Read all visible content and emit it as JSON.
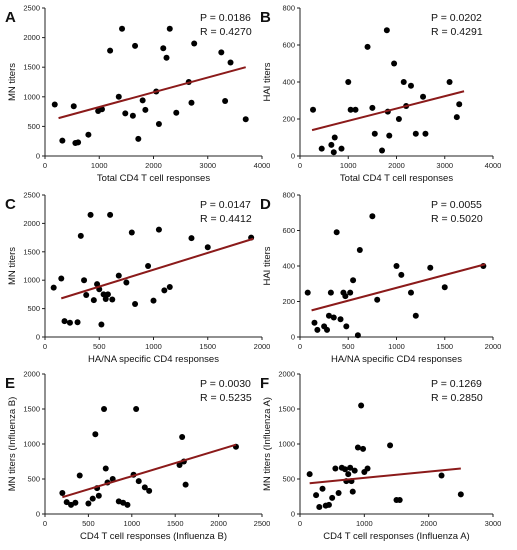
{
  "chart_data": [
    {
      "panel": "A",
      "type": "scatter",
      "xlabel": "Total CD4 T cell responses",
      "ylabel": "MN titers",
      "xlim": [
        0,
        4000
      ],
      "ylim": [
        0,
        2500
      ],
      "xticks": [
        0,
        1000,
        2000,
        3000,
        4000
      ],
      "yticks": [
        0,
        500,
        1000,
        1500,
        2000,
        2500
      ],
      "p_text": "P = 0.0186",
      "r_text": "R = 0.4270",
      "trend": [
        [
          250,
          640
        ],
        [
          3700,
          1500
        ]
      ],
      "points": [
        [
          180,
          870
        ],
        [
          320,
          260
        ],
        [
          560,
          220
        ],
        [
          610,
          230
        ],
        [
          530,
          840
        ],
        [
          800,
          360
        ],
        [
          980,
          760
        ],
        [
          1050,
          790
        ],
        [
          1200,
          1780
        ],
        [
          1360,
          1000
        ],
        [
          1420,
          2150
        ],
        [
          1480,
          720
        ],
        [
          1620,
          680
        ],
        [
          1660,
          1860
        ],
        [
          1720,
          290
        ],
        [
          1800,
          940
        ],
        [
          1850,
          780
        ],
        [
          2050,
          1090
        ],
        [
          2100,
          540
        ],
        [
          2180,
          1820
        ],
        [
          2240,
          1660
        ],
        [
          2300,
          2150
        ],
        [
          2420,
          730
        ],
        [
          2650,
          1250
        ],
        [
          2700,
          900
        ],
        [
          2750,
          1900
        ],
        [
          3250,
          1750
        ],
        [
          3320,
          930
        ],
        [
          3420,
          1580
        ],
        [
          3700,
          620
        ]
      ]
    },
    {
      "panel": "B",
      "type": "scatter",
      "xlabel": "Total CD4 T cell responses",
      "ylabel": "HAI titers",
      "xlim": [
        0,
        4000
      ],
      "ylim": [
        0,
        800
      ],
      "xticks": [
        0,
        1000,
        2000,
        3000,
        4000
      ],
      "yticks": [
        0,
        200,
        400,
        600,
        800
      ],
      "p_text": "P = 0.0202",
      "r_text": "R = 0.4291",
      "trend": [
        [
          250,
          140
        ],
        [
          3400,
          350
        ]
      ],
      "points": [
        [
          270,
          250
        ],
        [
          450,
          40
        ],
        [
          650,
          60
        ],
        [
          700,
          20
        ],
        [
          720,
          100
        ],
        [
          860,
          40
        ],
        [
          1000,
          400
        ],
        [
          1050,
          250
        ],
        [
          1150,
          250
        ],
        [
          1400,
          590
        ],
        [
          1500,
          260
        ],
        [
          1550,
          120
        ],
        [
          1700,
          30
        ],
        [
          1800,
          680
        ],
        [
          1820,
          240
        ],
        [
          1850,
          110
        ],
        [
          1950,
          500
        ],
        [
          2050,
          200
        ],
        [
          2150,
          400
        ],
        [
          2200,
          270
        ],
        [
          2300,
          380
        ],
        [
          2400,
          120
        ],
        [
          2550,
          320
        ],
        [
          2600,
          120
        ],
        [
          3100,
          400
        ],
        [
          3250,
          210
        ],
        [
          3300,
          280
        ]
      ]
    },
    {
      "panel": "C",
      "type": "scatter",
      "xlabel": "HA/NA specific CD4 responses",
      "ylabel": "MN titers",
      "xlim": [
        0,
        2000
      ],
      "ylim": [
        0,
        2500
      ],
      "xticks": [
        0,
        500,
        1000,
        1500,
        2000
      ],
      "yticks": [
        0,
        500,
        1000,
        1500,
        2000,
        2500
      ],
      "p_text": "P = 0.0147",
      "r_text": "R = 0.4412",
      "trend": [
        [
          150,
          680
        ],
        [
          1920,
          1730
        ]
      ],
      "points": [
        [
          80,
          870
        ],
        [
          150,
          1030
        ],
        [
          180,
          280
        ],
        [
          230,
          250
        ],
        [
          300,
          260
        ],
        [
          330,
          1780
        ],
        [
          360,
          1000
        ],
        [
          380,
          740
        ],
        [
          420,
          2150
        ],
        [
          450,
          650
        ],
        [
          480,
          930
        ],
        [
          500,
          840
        ],
        [
          520,
          220
        ],
        [
          540,
          750
        ],
        [
          560,
          670
        ],
        [
          580,
          750
        ],
        [
          600,
          2150
        ],
        [
          620,
          660
        ],
        [
          680,
          1080
        ],
        [
          750,
          960
        ],
        [
          800,
          1840
        ],
        [
          830,
          580
        ],
        [
          950,
          1250
        ],
        [
          1000,
          640
        ],
        [
          1050,
          1890
        ],
        [
          1100,
          820
        ],
        [
          1150,
          880
        ],
        [
          1350,
          1740
        ],
        [
          1500,
          1580
        ],
        [
          1900,
          1750
        ]
      ]
    },
    {
      "panel": "D",
      "type": "scatter",
      "xlabel": "HA/NA specific CD4 responses",
      "ylabel": "HAI titers",
      "xlim": [
        0,
        2000
      ],
      "ylim": [
        0,
        800
      ],
      "xticks": [
        0,
        500,
        1000,
        1500,
        2000
      ],
      "yticks": [
        0,
        200,
        400,
        600,
        800
      ],
      "p_text": "P = 0.0055",
      "r_text": "R = 0.5020",
      "trend": [
        [
          120,
          150
        ],
        [
          1920,
          410
        ]
      ],
      "points": [
        [
          80,
          250
        ],
        [
          150,
          80
        ],
        [
          180,
          40
        ],
        [
          250,
          60
        ],
        [
          280,
          40
        ],
        [
          300,
          120
        ],
        [
          320,
          250
        ],
        [
          350,
          110
        ],
        [
          380,
          590
        ],
        [
          420,
          100
        ],
        [
          450,
          250
        ],
        [
          470,
          230
        ],
        [
          480,
          60
        ],
        [
          520,
          250
        ],
        [
          550,
          320
        ],
        [
          600,
          10
        ],
        [
          620,
          490
        ],
        [
          750,
          680
        ],
        [
          800,
          210
        ],
        [
          1000,
          400
        ],
        [
          1050,
          350
        ],
        [
          1150,
          250
        ],
        [
          1200,
          120
        ],
        [
          1350,
          390
        ],
        [
          1500,
          280
        ],
        [
          1900,
          400
        ]
      ]
    },
    {
      "panel": "E",
      "type": "scatter",
      "xlabel": "CD4 T cell responses (Influenza B)",
      "ylabel": "MN titers (Influenza B)",
      "xlim": [
        0,
        2500
      ],
      "ylim": [
        0,
        2000
      ],
      "xticks": [
        0,
        500,
        1000,
        1500,
        2000,
        2500
      ],
      "yticks": [
        0,
        500,
        1000,
        1500,
        2000
      ],
      "p_text": "P = 0.0030",
      "r_text": "R = 0.5235",
      "trend": [
        [
          200,
          240
        ],
        [
          2200,
          990
        ]
      ],
      "points": [
        [
          200,
          300
        ],
        [
          250,
          170
        ],
        [
          300,
          130
        ],
        [
          350,
          160
        ],
        [
          400,
          550
        ],
        [
          500,
          150
        ],
        [
          550,
          220
        ],
        [
          580,
          1140
        ],
        [
          600,
          370
        ],
        [
          620,
          260
        ],
        [
          680,
          1500
        ],
        [
          700,
          650
        ],
        [
          720,
          450
        ],
        [
          780,
          500
        ],
        [
          850,
          180
        ],
        [
          900,
          160
        ],
        [
          950,
          130
        ],
        [
          1050,
          1500
        ],
        [
          1020,
          560
        ],
        [
          1080,
          470
        ],
        [
          1150,
          380
        ],
        [
          1200,
          330
        ],
        [
          1550,
          700
        ],
        [
          1580,
          1100
        ],
        [
          1600,
          750
        ],
        [
          1620,
          420
        ],
        [
          2200,
          960
        ]
      ]
    },
    {
      "panel": "F",
      "type": "scatter",
      "xlabel": "CD4 T cell responses (Influenza A)",
      "ylabel": "MN titers (Influenza A)",
      "xlim": [
        0,
        3000
      ],
      "ylim": [
        0,
        2000
      ],
      "xticks": [
        0,
        1000,
        2000,
        3000
      ],
      "yticks": [
        0,
        500,
        1000,
        1500,
        2000
      ],
      "p_text": "P = 0.1269",
      "r_text": "R = 0.2850",
      "trend": [
        [
          150,
          440
        ],
        [
          2500,
          650
        ]
      ],
      "points": [
        [
          150,
          570
        ],
        [
          250,
          270
        ],
        [
          300,
          100
        ],
        [
          350,
          360
        ],
        [
          400,
          120
        ],
        [
          450,
          130
        ],
        [
          500,
          230
        ],
        [
          550,
          650
        ],
        [
          600,
          300
        ],
        [
          650,
          660
        ],
        [
          700,
          640
        ],
        [
          720,
          470
        ],
        [
          750,
          570
        ],
        [
          780,
          660
        ],
        [
          800,
          470
        ],
        [
          820,
          320
        ],
        [
          850,
          620
        ],
        [
          900,
          950
        ],
        [
          950,
          1550
        ],
        [
          980,
          930
        ],
        [
          1000,
          600
        ],
        [
          1050,
          650
        ],
        [
          1400,
          980
        ],
        [
          1500,
          200
        ],
        [
          1550,
          200
        ],
        [
          2200,
          550
        ],
        [
          2500,
          280
        ]
      ]
    }
  ]
}
